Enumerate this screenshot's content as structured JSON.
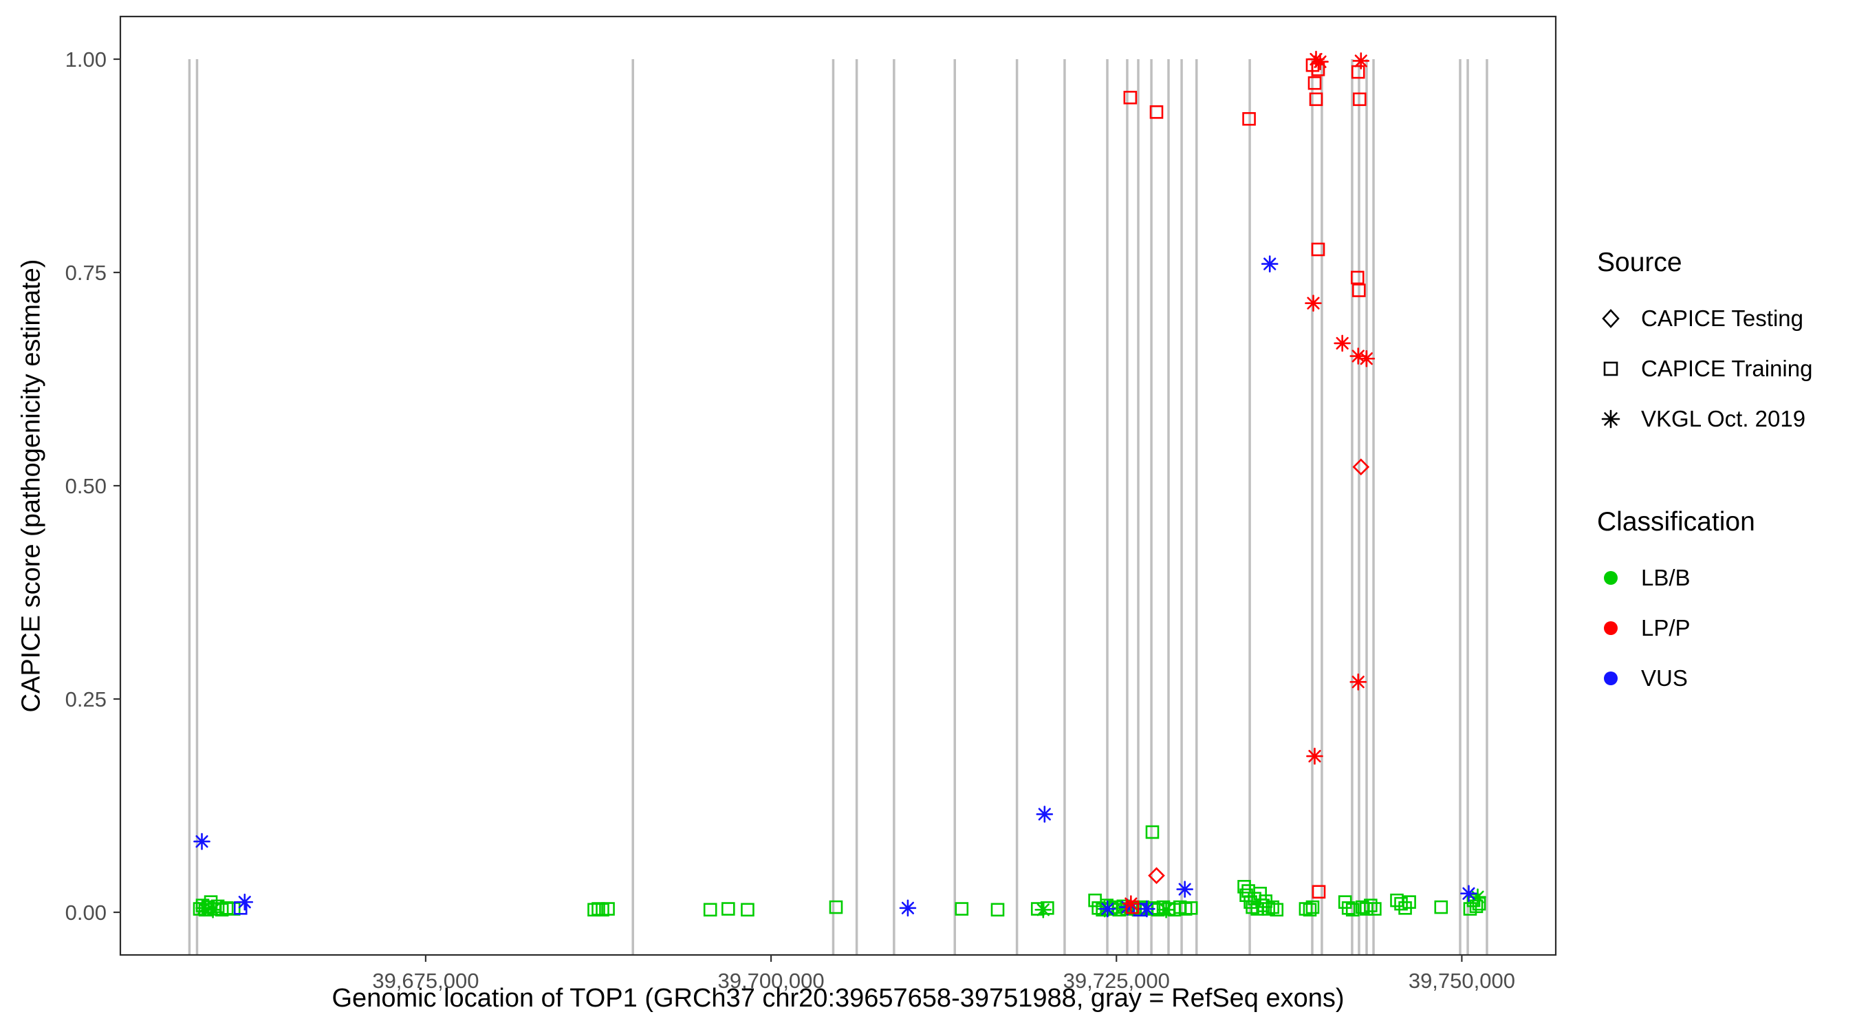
{
  "chart_data": {
    "type": "scatter",
    "title": "",
    "xlabel": "Genomic location of TOP1 (GRCh37 chr20:39657658-39751988, gray = RefSeq exons)",
    "ylabel": "CAPICE score (pathogenicity estimate)",
    "xlim": [
      39652900,
      39756800
    ],
    "ylim": [
      -0.05,
      1.05
    ],
    "grid": false,
    "legend_position": "right",
    "x_ticks": [
      {
        "value": 39675000,
        "label": "39,675,000"
      },
      {
        "value": 39700000,
        "label": "39,700,000"
      },
      {
        "value": 39725000,
        "label": "39,725,000"
      },
      {
        "value": 39750000,
        "label": "39,750,000"
      }
    ],
    "y_ticks": [
      {
        "value": 0.0,
        "label": "0.00"
      },
      {
        "value": 0.25,
        "label": "0.25"
      },
      {
        "value": 0.5,
        "label": "0.50"
      },
      {
        "value": 0.75,
        "label": "0.75"
      },
      {
        "value": 1.0,
        "label": "1.00"
      }
    ],
    "exon_color": "#bfbfbf",
    "exons_x": [
      39657900,
      39658450,
      39690000,
      39704500,
      39706200,
      39708900,
      39713300,
      39717800,
      39721250,
      39724340,
      39725780,
      39726580,
      39727530,
      39728770,
      39729720,
      39730800,
      39734650,
      39739175,
      39739870,
      39742060,
      39742560,
      39743110,
      39743610,
      39749880,
      39750430,
      39751820
    ],
    "classification_colors": {
      "LB/B": "#00cd00",
      "LP/P": "#ff0000",
      "VUS": "#1414ff"
    },
    "source_shapes": {
      "CAPICE Testing": "diamond",
      "CAPICE Training": "square",
      "VKGL Oct. 2019": "asterisk"
    },
    "points_format": [
      "shape",
      "x",
      "y",
      "classification"
    ],
    "points": [
      [
        "square",
        39658650,
        0.004,
        "LB/B"
      ],
      [
        "square",
        39658850,
        0.008,
        "LB/B"
      ],
      [
        "square",
        39659050,
        0.003,
        "LB/B"
      ],
      [
        "square",
        39659250,
        0.006,
        "LB/B"
      ],
      [
        "square",
        39659450,
        0.012,
        "LB/B"
      ],
      [
        "square",
        39659700,
        0.004,
        "LB/B"
      ],
      [
        "square",
        39659950,
        0.007,
        "LB/B"
      ],
      [
        "square",
        39660250,
        0.003,
        "LB/B"
      ],
      [
        "square",
        39660600,
        0.005,
        "LB/B"
      ],
      [
        "square",
        39661100,
        0.004,
        "LB/B"
      ],
      [
        "asterisk",
        39658950,
        0.005,
        "LB/B"
      ],
      [
        "asterisk",
        39659600,
        0.003,
        "LB/B"
      ],
      [
        "square",
        39687200,
        0.003,
        "LB/B"
      ],
      [
        "square",
        39687500,
        0.004,
        "LB/B"
      ],
      [
        "square",
        39687800,
        0.003,
        "LB/B"
      ],
      [
        "square",
        39688200,
        0.004,
        "LB/B"
      ],
      [
        "square",
        39695600,
        0.003,
        "LB/B"
      ],
      [
        "square",
        39696900,
        0.004,
        "LB/B"
      ],
      [
        "square",
        39698300,
        0.003,
        "LB/B"
      ],
      [
        "square",
        39704700,
        0.006,
        "LB/B"
      ],
      [
        "square",
        39713800,
        0.004,
        "LB/B"
      ],
      [
        "square",
        39716400,
        0.003,
        "LB/B"
      ],
      [
        "square",
        39719300,
        0.004,
        "LB/B"
      ],
      [
        "asterisk",
        39719700,
        0.003,
        "LB/B"
      ],
      [
        "square",
        39720000,
        0.005,
        "LB/B"
      ],
      [
        "square",
        39723450,
        0.014,
        "LB/B"
      ],
      [
        "square",
        39723700,
        0.005,
        "LB/B"
      ],
      [
        "square",
        39724000,
        0.003,
        "LB/B"
      ],
      [
        "square",
        39724300,
        0.008,
        "LB/B"
      ],
      [
        "square",
        39724600,
        0.004,
        "LB/B"
      ],
      [
        "square",
        39724900,
        0.006,
        "LB/B"
      ],
      [
        "square",
        39725200,
        0.003,
        "LB/B"
      ],
      [
        "square",
        39725500,
        0.007,
        "LB/B"
      ],
      [
        "square",
        39725800,
        0.004,
        "LB/B"
      ],
      [
        "square",
        39726300,
        0.005,
        "LB/B"
      ],
      [
        "square",
        39726600,
        0.003,
        "LB/B"
      ],
      [
        "square",
        39726900,
        0.006,
        "LB/B"
      ],
      [
        "square",
        39727200,
        0.004,
        "LB/B"
      ],
      [
        "square",
        39727600,
        0.094,
        "LB/B"
      ],
      [
        "square",
        39727700,
        0.005,
        "LB/B"
      ],
      [
        "square",
        39728000,
        0.003,
        "LB/B"
      ],
      [
        "square",
        39728400,
        0.006,
        "LB/B"
      ],
      [
        "square",
        39728800,
        0.004,
        "LB/B"
      ],
      [
        "square",
        39729200,
        0.003,
        "LB/B"
      ],
      [
        "square",
        39729600,
        0.006,
        "LB/B"
      ],
      [
        "square",
        39730000,
        0.004,
        "LB/B"
      ],
      [
        "square",
        39730400,
        0.005,
        "LB/B"
      ],
      [
        "asterisk",
        39724150,
        0.004,
        "LB/B"
      ],
      [
        "asterisk",
        39725350,
        0.005,
        "LB/B"
      ],
      [
        "asterisk",
        39728600,
        0.003,
        "LB/B"
      ],
      [
        "square",
        39734250,
        0.03,
        "LB/B"
      ],
      [
        "square",
        39734400,
        0.02,
        "LB/B"
      ],
      [
        "square",
        39734550,
        0.025,
        "LB/B"
      ],
      [
        "square",
        39734700,
        0.012,
        "LB/B"
      ],
      [
        "square",
        39734850,
        0.006,
        "LB/B"
      ],
      [
        "square",
        39735000,
        0.016,
        "LB/B"
      ],
      [
        "square",
        39735200,
        0.004,
        "LB/B"
      ],
      [
        "square",
        39735400,
        0.022,
        "LB/B"
      ],
      [
        "square",
        39735600,
        0.008,
        "LB/B"
      ],
      [
        "square",
        39735800,
        0.013,
        "LB/B"
      ],
      [
        "square",
        39736000,
        0.004,
        "LB/B"
      ],
      [
        "square",
        39736300,
        0.006,
        "LB/B"
      ],
      [
        "square",
        39736600,
        0.003,
        "LB/B"
      ],
      [
        "square",
        39738700,
        0.004,
        "LB/B"
      ],
      [
        "square",
        39739000,
        0.003,
        "LB/B"
      ],
      [
        "square",
        39739200,
        0.006,
        "LB/B"
      ],
      [
        "square",
        39741550,
        0.012,
        "LB/B"
      ],
      [
        "square",
        39741800,
        0.005,
        "LB/B"
      ],
      [
        "square",
        39742100,
        0.003,
        "LB/B"
      ],
      [
        "square",
        39742800,
        0.006,
        "LB/B"
      ],
      [
        "square",
        39743100,
        0.004,
        "LB/B"
      ],
      [
        "square",
        39743400,
        0.008,
        "LB/B"
      ],
      [
        "square",
        39743700,
        0.004,
        "LB/B"
      ],
      [
        "square",
        39745300,
        0.014,
        "LB/B"
      ],
      [
        "square",
        39745600,
        0.01,
        "LB/B"
      ],
      [
        "square",
        39745900,
        0.005,
        "LB/B"
      ],
      [
        "square",
        39746200,
        0.012,
        "LB/B"
      ],
      [
        "square",
        39748500,
        0.006,
        "LB/B"
      ],
      [
        "square",
        39750600,
        0.004,
        "LB/B"
      ],
      [
        "square",
        39750850,
        0.014,
        "LB/B"
      ],
      [
        "square",
        39751050,
        0.007,
        "LB/B"
      ],
      [
        "square",
        39751250,
        0.01,
        "LB/B"
      ],
      [
        "asterisk",
        39751150,
        0.018,
        "LB/B"
      ],
      [
        "asterisk",
        39658800,
        0.083,
        "VUS"
      ],
      [
        "asterisk",
        39661900,
        0.012,
        "VUS"
      ],
      [
        "square",
        39661600,
        0.005,
        "VUS"
      ],
      [
        "asterisk",
        39709900,
        0.005,
        "VUS"
      ],
      [
        "asterisk",
        39719800,
        0.115,
        "VUS"
      ],
      [
        "asterisk",
        39736100,
        0.76,
        "VUS"
      ],
      [
        "asterisk",
        39724350,
        0.004,
        "VUS"
      ],
      [
        "asterisk",
        39725800,
        0.006,
        "VUS"
      ],
      [
        "square",
        39726700,
        0.003,
        "VUS"
      ],
      [
        "asterisk",
        39729950,
        0.027,
        "VUS"
      ],
      [
        "asterisk",
        39727200,
        0.004,
        "VUS"
      ],
      [
        "asterisk",
        39750500,
        0.022,
        "VUS"
      ],
      [
        "square",
        39726000,
        0.955,
        "LP/P"
      ],
      [
        "square",
        39727900,
        0.938,
        "LP/P"
      ],
      [
        "square",
        39734600,
        0.93,
        "LP/P"
      ],
      [
        "asterisk",
        39739450,
        1.0,
        "LP/P"
      ],
      [
        "asterisk",
        39739750,
        0.997,
        "LP/P"
      ],
      [
        "square",
        39739200,
        0.993,
        "LP/P"
      ],
      [
        "square",
        39739600,
        0.988,
        "LP/P"
      ],
      [
        "square",
        39739350,
        0.972,
        "LP/P"
      ],
      [
        "square",
        39739450,
        0.953,
        "LP/P"
      ],
      [
        "square",
        39739600,
        0.777,
        "LP/P"
      ],
      [
        "asterisk",
        39739250,
        0.714,
        "LP/P"
      ],
      [
        "asterisk",
        39741350,
        0.667,
        "LP/P"
      ],
      [
        "asterisk",
        39739350,
        0.183,
        "LP/P"
      ],
      [
        "square",
        39739650,
        0.024,
        "LP/P"
      ],
      [
        "asterisk",
        39742700,
        0.998,
        "LP/P"
      ],
      [
        "square",
        39742500,
        0.985,
        "LP/P"
      ],
      [
        "square",
        39742600,
        0.953,
        "LP/P"
      ],
      [
        "square",
        39742450,
        0.744,
        "LP/P"
      ],
      [
        "square",
        39742550,
        0.729,
        "LP/P"
      ],
      [
        "asterisk",
        39742500,
        0.652,
        "LP/P"
      ],
      [
        "asterisk",
        39743100,
        0.649,
        "LP/P"
      ],
      [
        "diamond",
        39742700,
        0.522,
        "LP/P"
      ],
      [
        "asterisk",
        39742500,
        0.27,
        "LP/P"
      ],
      [
        "diamond",
        39727900,
        0.043,
        "LP/P"
      ],
      [
        "asterisk",
        39726050,
        0.01,
        "LP/P"
      ],
      [
        "square",
        39726150,
        0.006,
        "LP/P"
      ]
    ]
  },
  "legend": {
    "source": {
      "title": "Source",
      "items": [
        {
          "label": "CAPICE Testing",
          "shape": "diamond"
        },
        {
          "label": "CAPICE Training",
          "shape": "square"
        },
        {
          "label": "VKGL Oct. 2019",
          "shape": "asterisk"
        }
      ]
    },
    "classification": {
      "title": "Classification",
      "items": [
        {
          "label": "LB/B",
          "color": "#00cd00"
        },
        {
          "label": "LP/P",
          "color": "#ff0000"
        },
        {
          "label": "VUS",
          "color": "#1414ff"
        }
      ]
    }
  }
}
